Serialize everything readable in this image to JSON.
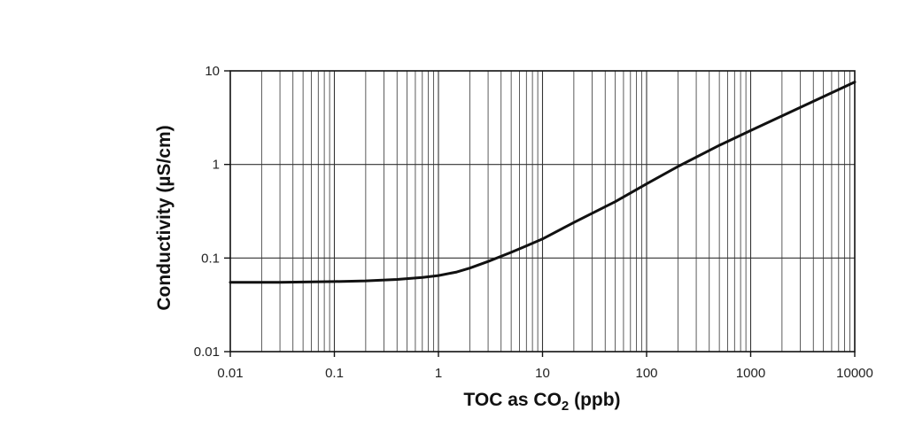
{
  "chart_data": {
    "type": "line",
    "title": "",
    "xlabel": {
      "text": "TOC as CO",
      "subscript": "2",
      "suffix": " (ppb)"
    },
    "ylabel": "Conductivity (µS/cm)",
    "xscale": "log",
    "yscale": "log",
    "xlim": [
      0.01,
      10000
    ],
    "ylim": [
      0.01,
      10
    ],
    "grid": true,
    "legend": "none",
    "x_tick_labels": [
      "0.01",
      "0.1",
      "1",
      "10",
      "100",
      "1000",
      "10000"
    ],
    "y_tick_labels": [
      "10",
      "1",
      "0.1",
      "0.01"
    ],
    "x_ticks": [
      0.01,
      0.1,
      1,
      10,
      100,
      1000,
      10000
    ],
    "y_ticks": [
      10,
      1,
      0.1,
      0.01
    ],
    "series": [
      {
        "x": [
          0.01,
          0.03,
          0.1,
          0.2,
          0.4,
          0.7,
          1,
          1.5,
          2,
          3,
          5,
          7,
          10,
          20,
          50,
          100,
          200,
          500,
          1000,
          2000,
          5000,
          10000
        ],
        "y": [
          0.055,
          0.055,
          0.056,
          0.057,
          0.059,
          0.062,
          0.065,
          0.071,
          0.078,
          0.092,
          0.115,
          0.135,
          0.16,
          0.24,
          0.4,
          0.62,
          0.95,
          1.6,
          2.3,
          3.3,
          5.3,
          7.6
        ]
      }
    ],
    "colors": {
      "line": "#111111",
      "grid": "#333333",
      "frame": "#111111"
    }
  }
}
